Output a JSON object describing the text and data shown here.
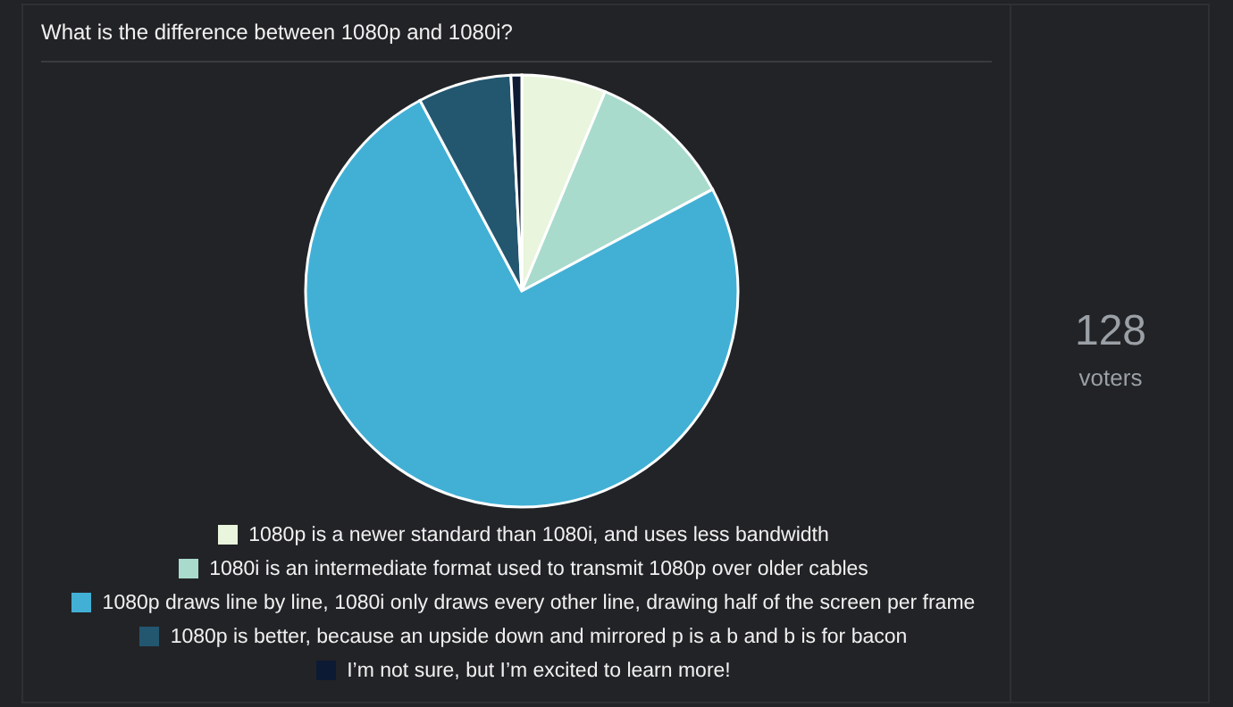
{
  "chart_data": {
    "type": "pie",
    "title": "What is the difference between 1080p and 1080i?",
    "categories": [
      "1080p is a newer standard than 1080i, and uses less bandwidth",
      "1080i is an intermediate format used to transmit 1080p over older cables",
      "1080p draws line by line, 1080i only draws every other line, drawing half of the screen per frame",
      "1080p is better, because an upside down and mirrored p is a b and b is for bacon",
      "I’m not sure, but I’m excited to learn more!"
    ],
    "values": [
      6.3,
      10.9,
      75,
      7,
      0.8
    ],
    "colors": [
      "#e9f5dc",
      "#a8dbcc",
      "#42b0d5",
      "#23566f",
      "#0d1a33"
    ],
    "legend": "bottom",
    "annotations": [
      "128",
      "voters"
    ]
  }
}
